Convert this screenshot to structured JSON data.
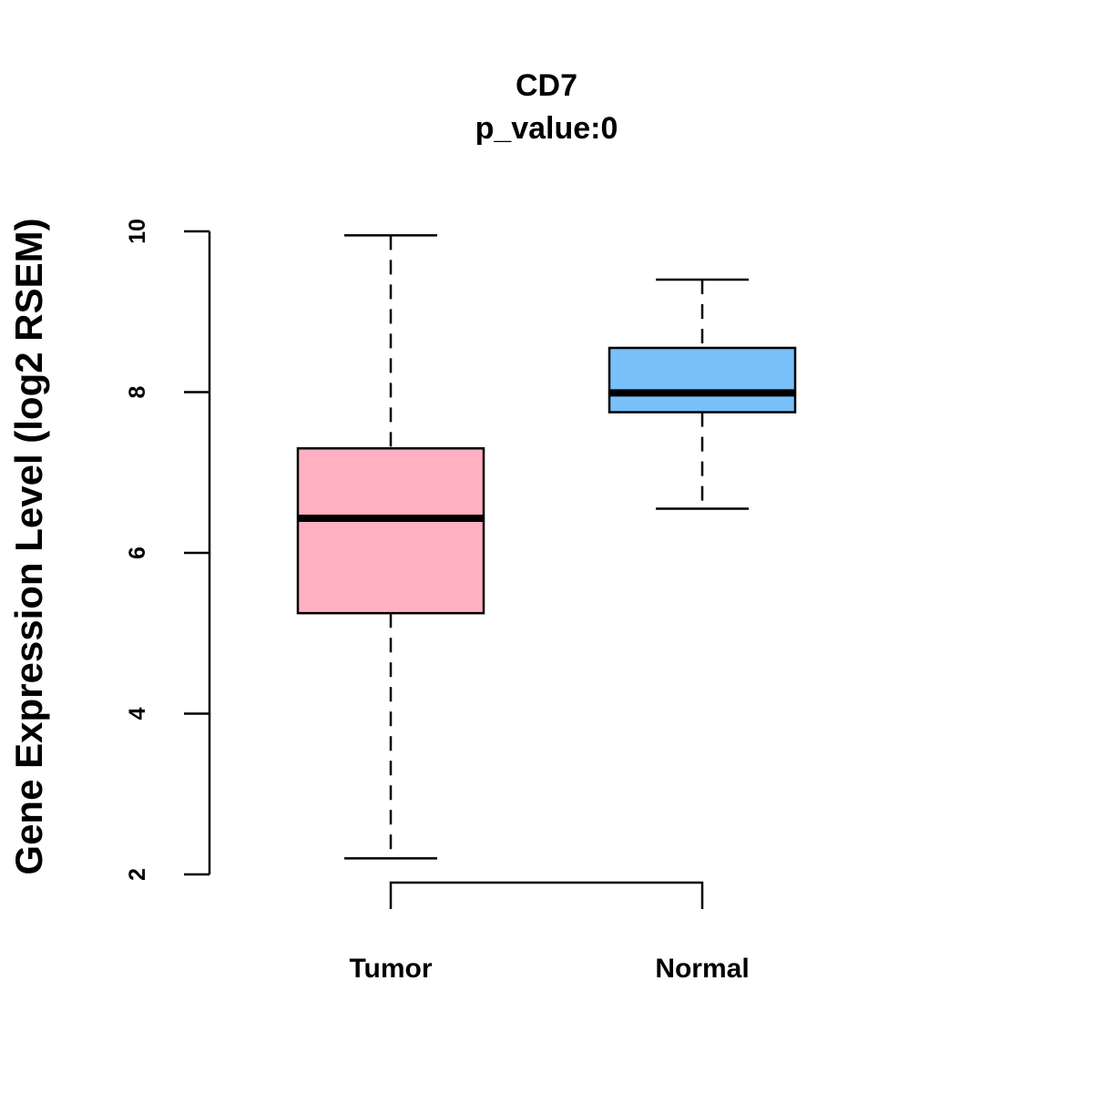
{
  "chart_data": {
    "type": "boxplot",
    "title": "CD7",
    "subtitle": "p_value:0",
    "xlabel": "",
    "ylabel": "Gene Expression Level (log2 RSEM)",
    "ylim": [
      2,
      10
    ],
    "yticks": [
      "2",
      "4",
      "6",
      "8",
      "10"
    ],
    "categories": [
      "Tumor",
      "Normal"
    ],
    "boxes": [
      {
        "name": "Tumor",
        "whisker_low": 2.2,
        "q1": 5.25,
        "median": 6.43,
        "q3": 7.3,
        "whisker_high": 9.95,
        "color": "#FFB0C1"
      },
      {
        "name": "Normal",
        "whisker_low": 6.55,
        "q1": 7.75,
        "median": 7.99,
        "q3": 8.55,
        "whisker_high": 9.4,
        "color": "#78C0F8"
      }
    ],
    "significance_bracket": {
      "from": "Tumor",
      "to": "Normal",
      "label": ""
    }
  }
}
